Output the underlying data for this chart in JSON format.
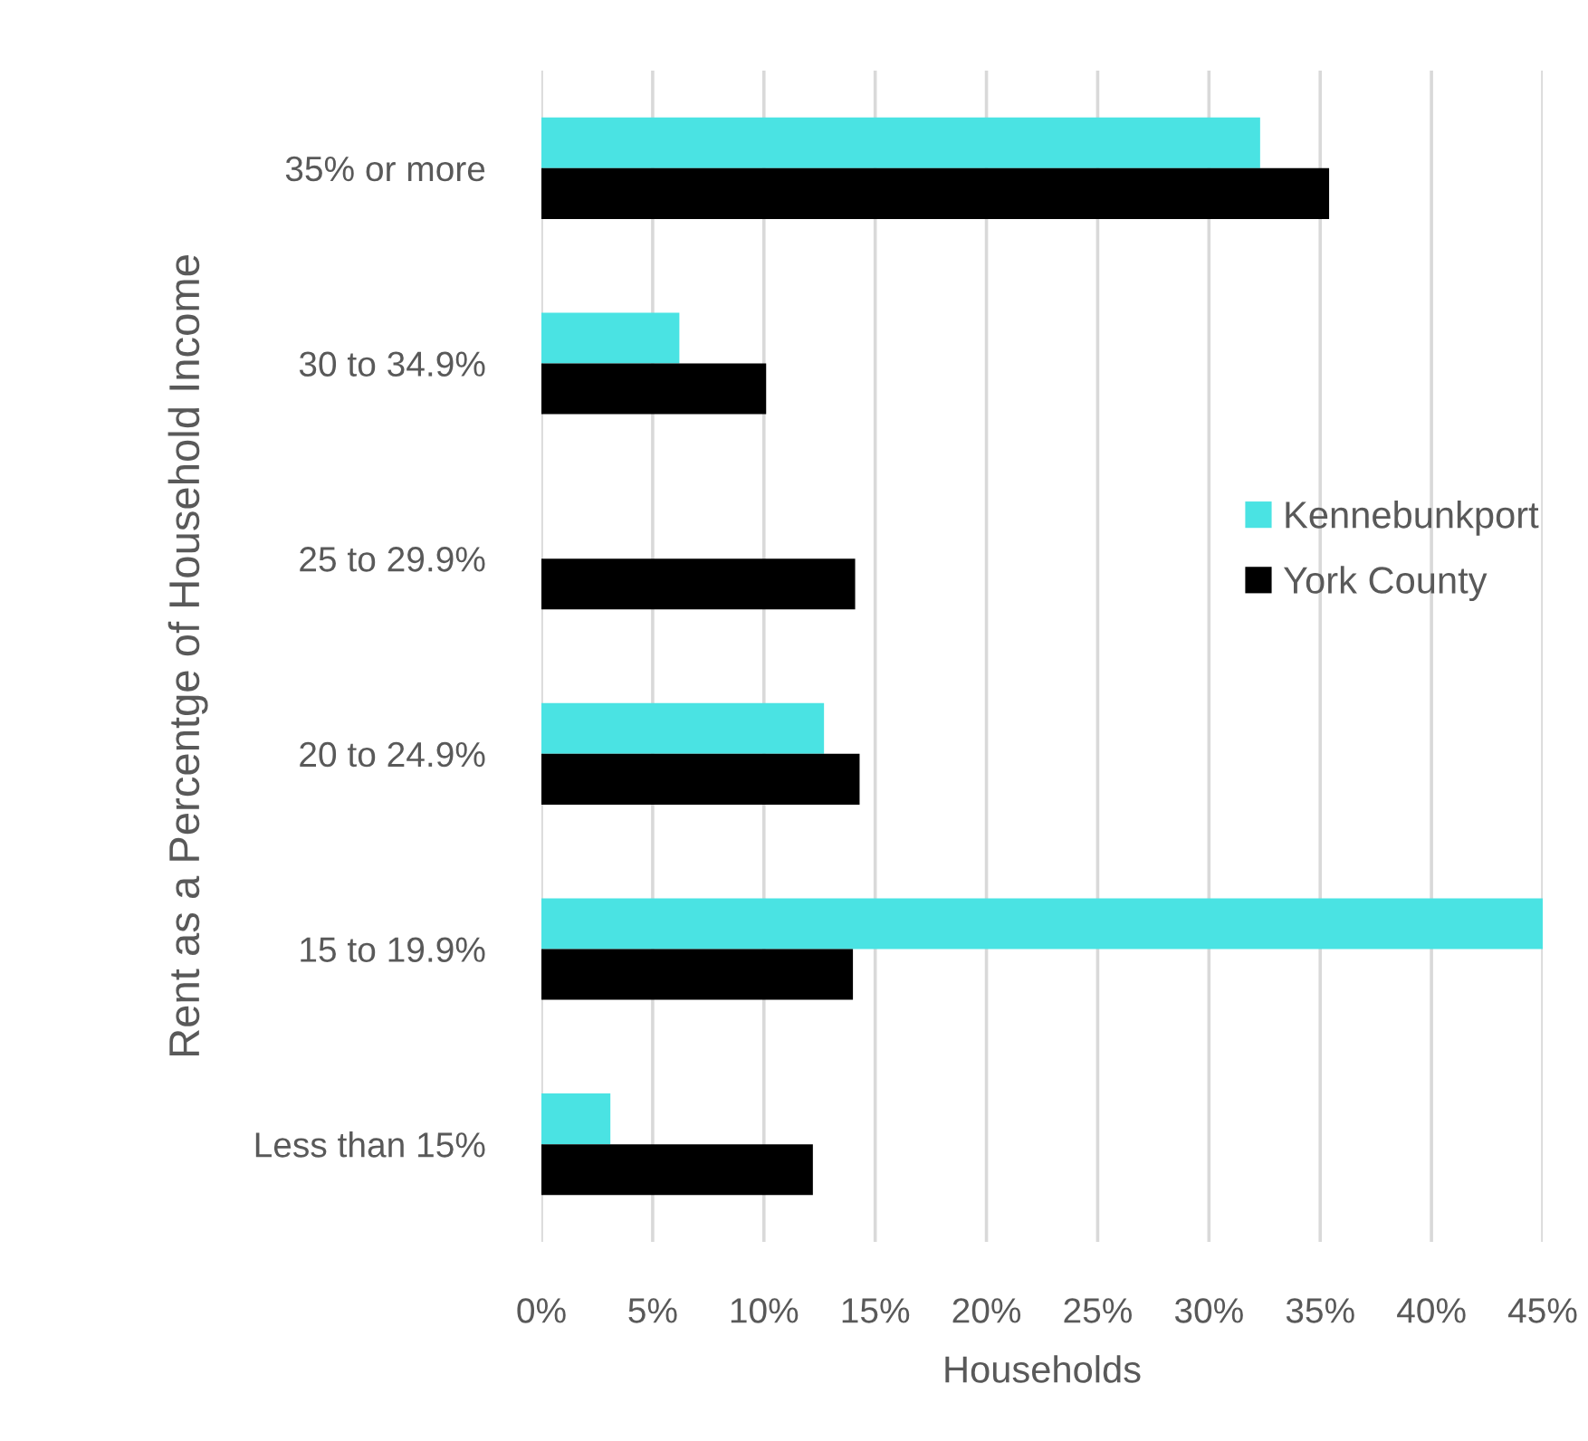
{
  "chart_data": {
    "type": "bar",
    "orientation": "horizontal",
    "xlabel": "Households",
    "ylabel": "Rent as a Percentge of Household Income",
    "categories": [
      "35% or more",
      "30 to 34.9%",
      "25 to 29.9%",
      "20 to 24.9%",
      "15 to 19.9%",
      "Less than 15%"
    ],
    "series": [
      {
        "name": "Kennebunkport",
        "color": "#4ae3e3",
        "values": [
          32.3,
          6.2,
          0,
          12.7,
          45,
          3.1
        ]
      },
      {
        "name": "York County",
        "color": "#000000",
        "values": [
          35.4,
          10.1,
          14.1,
          14.3,
          14.0,
          12.2
        ]
      }
    ],
    "xlim": [
      0,
      45
    ],
    "xticks": [
      {
        "value": 0,
        "label": "0%"
      },
      {
        "value": 5,
        "label": "5%"
      },
      {
        "value": 10,
        "label": "10%"
      },
      {
        "value": 15,
        "label": "15%"
      },
      {
        "value": 20,
        "label": "20%"
      },
      {
        "value": 25,
        "label": "25%"
      },
      {
        "value": 30,
        "label": "30%"
      },
      {
        "value": 35,
        "label": "35%"
      },
      {
        "value": 40,
        "label": "40%"
      },
      {
        "value": 45,
        "label": "45%"
      }
    ],
    "grid": "x",
    "legend": "right"
  }
}
